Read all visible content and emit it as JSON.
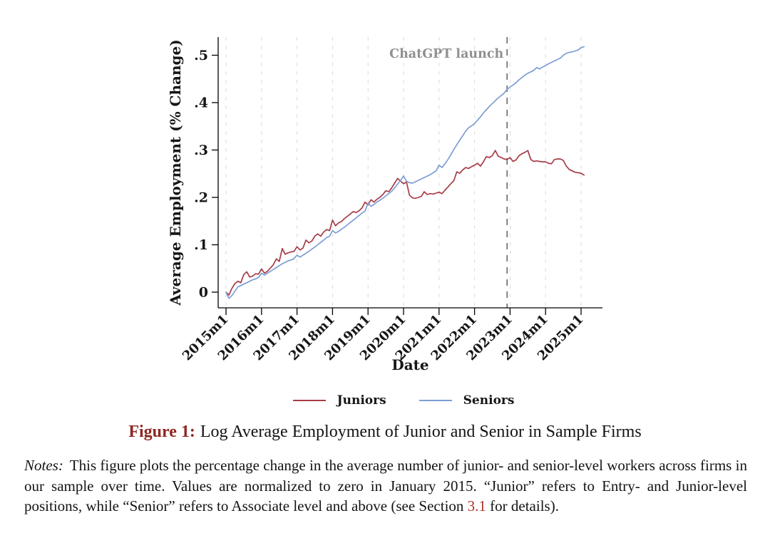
{
  "figure": {
    "caption_label": "Figure 1:",
    "caption_title": "Log Average Employment of Junior and Senior in Sample Firms",
    "notes_label": "Notes:",
    "notes_before_link": "This figure plots the percentage change in the average number of junior- and senior-level workers across firms in our sample over time.  Values are normalized to zero in January 2015.  “Junior” refers to Entry- and Junior-level positions, while “Senior” refers to Associate level and above (see Section",
    "notes_link": "3.1",
    "notes_after_link": "for details).",
    "link_color": "#ae3127"
  },
  "legend": {
    "items": [
      {
        "label": "Juniors",
        "color": "#a63c47"
      },
      {
        "label": "Seniors",
        "color": "#7d9ed5"
      }
    ]
  },
  "chart_data": {
    "type": "line",
    "title": "",
    "xlabel": "Date",
    "ylabel": "Average Employment (% Change)",
    "x_start": "2015m1",
    "x_frequency": "monthly",
    "x_tick_labels": [
      "2015m1",
      "2016m1",
      "2017m1",
      "2018m1",
      "2019m1",
      "2020m1",
      "2021m1",
      "2022m1",
      "2023m1",
      "2024m1",
      "2025m1"
    ],
    "y_ticks": {
      "values": [
        0,
        0.1,
        0.2,
        0.3,
        0.4,
        0.5
      ],
      "labels": [
        "0",
        ".1",
        ".2",
        ".3",
        ".4",
        ".5"
      ]
    },
    "ylim": [
      -0.033,
      0.538
    ],
    "grid": "vertical-dashed",
    "legend_position": "bottom-center",
    "annotation": {
      "text": "ChatGPT launch",
      "x": "2022m12",
      "x_index": 95,
      "style": "dashed-vertical-line",
      "color": "#6e6e6e",
      "text_color": "#909090"
    },
    "series": [
      {
        "name": "Juniors",
        "color": "#a63c47",
        "values": [
          0.0,
          -0.006,
          0.008,
          0.018,
          0.023,
          0.02,
          0.037,
          0.043,
          0.032,
          0.034,
          0.039,
          0.038,
          0.049,
          0.04,
          0.044,
          0.051,
          0.058,
          0.07,
          0.065,
          0.092,
          0.08,
          0.083,
          0.085,
          0.086,
          0.096,
          0.089,
          0.093,
          0.11,
          0.104,
          0.108,
          0.118,
          0.123,
          0.118,
          0.127,
          0.132,
          0.13,
          0.152,
          0.14,
          0.146,
          0.149,
          0.155,
          0.16,
          0.165,
          0.17,
          0.168,
          0.172,
          0.178,
          0.19,
          0.184,
          0.195,
          0.19,
          0.196,
          0.2,
          0.206,
          0.214,
          0.212,
          0.22,
          0.23,
          0.24,
          0.234,
          0.229,
          0.232,
          0.205,
          0.199,
          0.198,
          0.2,
          0.202,
          0.212,
          0.206,
          0.208,
          0.207,
          0.209,
          0.211,
          0.208,
          0.215,
          0.222,
          0.229,
          0.235,
          0.254,
          0.251,
          0.258,
          0.263,
          0.261,
          0.265,
          0.268,
          0.272,
          0.266,
          0.275,
          0.286,
          0.284,
          0.288,
          0.299,
          0.287,
          0.284,
          0.281,
          0.28,
          0.284,
          0.276,
          0.279,
          0.288,
          0.292,
          0.295,
          0.299,
          0.28,
          0.276,
          0.277,
          0.276,
          0.275,
          0.275,
          0.272,
          0.271,
          0.28,
          0.281,
          0.281,
          0.278,
          0.266,
          0.259,
          0.256,
          0.253,
          0.252,
          0.251,
          0.247
        ]
      },
      {
        "name": "Seniors",
        "color": "#7d9ed5",
        "values": [
          0.0,
          -0.013,
          -0.007,
          0.002,
          0.011,
          0.014,
          0.017,
          0.02,
          0.023,
          0.026,
          0.028,
          0.031,
          0.04,
          0.036,
          0.04,
          0.044,
          0.048,
          0.052,
          0.056,
          0.06,
          0.063,
          0.066,
          0.068,
          0.071,
          0.078,
          0.074,
          0.078,
          0.082,
          0.086,
          0.091,
          0.095,
          0.1,
          0.105,
          0.11,
          0.115,
          0.118,
          0.13,
          0.125,
          0.128,
          0.133,
          0.137,
          0.142,
          0.147,
          0.152,
          0.157,
          0.162,
          0.167,
          0.171,
          0.188,
          0.181,
          0.185,
          0.19,
          0.194,
          0.198,
          0.203,
          0.208,
          0.213,
          0.22,
          0.228,
          0.236,
          0.245,
          0.234,
          0.231,
          0.23,
          0.233,
          0.236,
          0.239,
          0.242,
          0.245,
          0.248,
          0.252,
          0.256,
          0.268,
          0.263,
          0.271,
          0.28,
          0.29,
          0.301,
          0.311,
          0.321,
          0.33,
          0.34,
          0.347,
          0.351,
          0.356,
          0.363,
          0.37,
          0.378,
          0.385,
          0.392,
          0.398,
          0.404,
          0.41,
          0.415,
          0.42,
          0.428,
          0.433,
          0.437,
          0.442,
          0.448,
          0.453,
          0.458,
          0.462,
          0.465,
          0.468,
          0.474,
          0.471,
          0.475,
          0.478,
          0.482,
          0.485,
          0.488,
          0.491,
          0.494,
          0.5,
          0.504,
          0.506,
          0.507,
          0.509,
          0.511,
          0.516,
          0.518
        ]
      }
    ],
    "grid_color": "#dadada",
    "axis_color": "#000000"
  }
}
